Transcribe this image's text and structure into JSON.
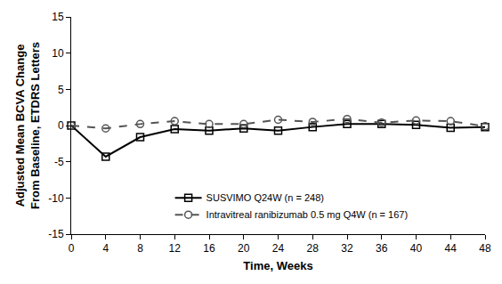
{
  "chart_data": {
    "type": "line",
    "xlabel": "Time, Weeks",
    "ylabel": [
      "Adjusted Mean BCVA Change",
      "From Baseline, ETDRS Letters"
    ],
    "x": [
      0,
      4,
      8,
      12,
      16,
      20,
      24,
      28,
      32,
      36,
      40,
      44,
      48
    ],
    "series": [
      {
        "name": "SUSVIMO Q24W (n = 248)",
        "color": "#000000",
        "marker": "square-open",
        "line_style": "solid",
        "values": [
          0,
          -4.3,
          -1.6,
          -0.5,
          -0.7,
          -0.4,
          -0.7,
          -0.2,
          0.2,
          0.2,
          0.1,
          -0.3,
          -0.2
        ]
      },
      {
        "name": "Intravitreal ranibizumab 0.5 mg Q4W (n = 167)",
        "color": "#555555",
        "marker": "circle-open",
        "line_style": "dash",
        "values": [
          0,
          -0.4,
          0.2,
          0.6,
          0.2,
          0.2,
          0.8,
          0.5,
          0.9,
          0.4,
          0.7,
          0.6,
          -0.1
        ]
      }
    ],
    "xlim": [
      0,
      48
    ],
    "xticks": [
      0,
      4,
      8,
      12,
      16,
      20,
      24,
      28,
      32,
      36,
      40,
      44,
      48
    ],
    "ylim": [
      -15,
      15
    ],
    "yticks": [
      -15,
      -10,
      -5,
      0,
      5,
      10,
      15
    ],
    "grid": false,
    "legend": "lower center"
  }
}
